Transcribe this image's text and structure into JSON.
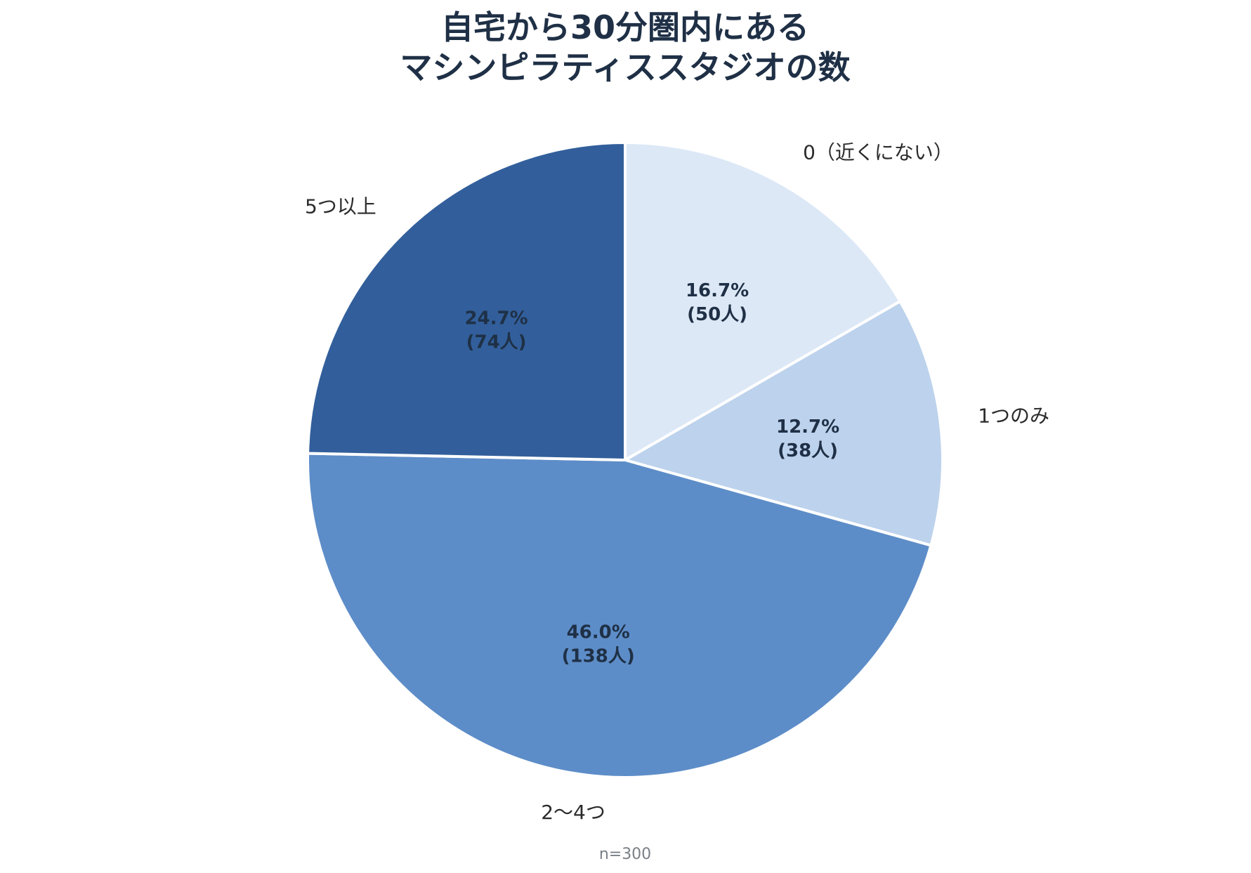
{
  "chart_data": {
    "type": "pie",
    "title": "自宅から30分圏内にある\nマシンピラティススタジオの数",
    "title_lines": [
      "自宅から30分圏内にある",
      "マシンピラティススタジオの数"
    ],
    "note": "n=300",
    "unit": "人",
    "start": "12 o'clock",
    "direction": "clockwise",
    "slices": [
      {
        "label": "0（近くにない）",
        "value": 50,
        "percent_text": "16.7%",
        "count_text": "(50人)",
        "color": "#dce8f6"
      },
      {
        "label": "1つのみ",
        "value": 38,
        "percent_text": "12.7%",
        "count_text": "(38人)",
        "color": "#bdd2ec"
      },
      {
        "label": "2〜4つ",
        "value": 138,
        "percent_text": "46.0%",
        "count_text": "(138人)",
        "color": "#5d8dc8"
      },
      {
        "label": "5つ以上",
        "value": 74,
        "percent_text": "24.7%",
        "count_text": "(74人)",
        "color": "#325f9b"
      }
    ]
  }
}
